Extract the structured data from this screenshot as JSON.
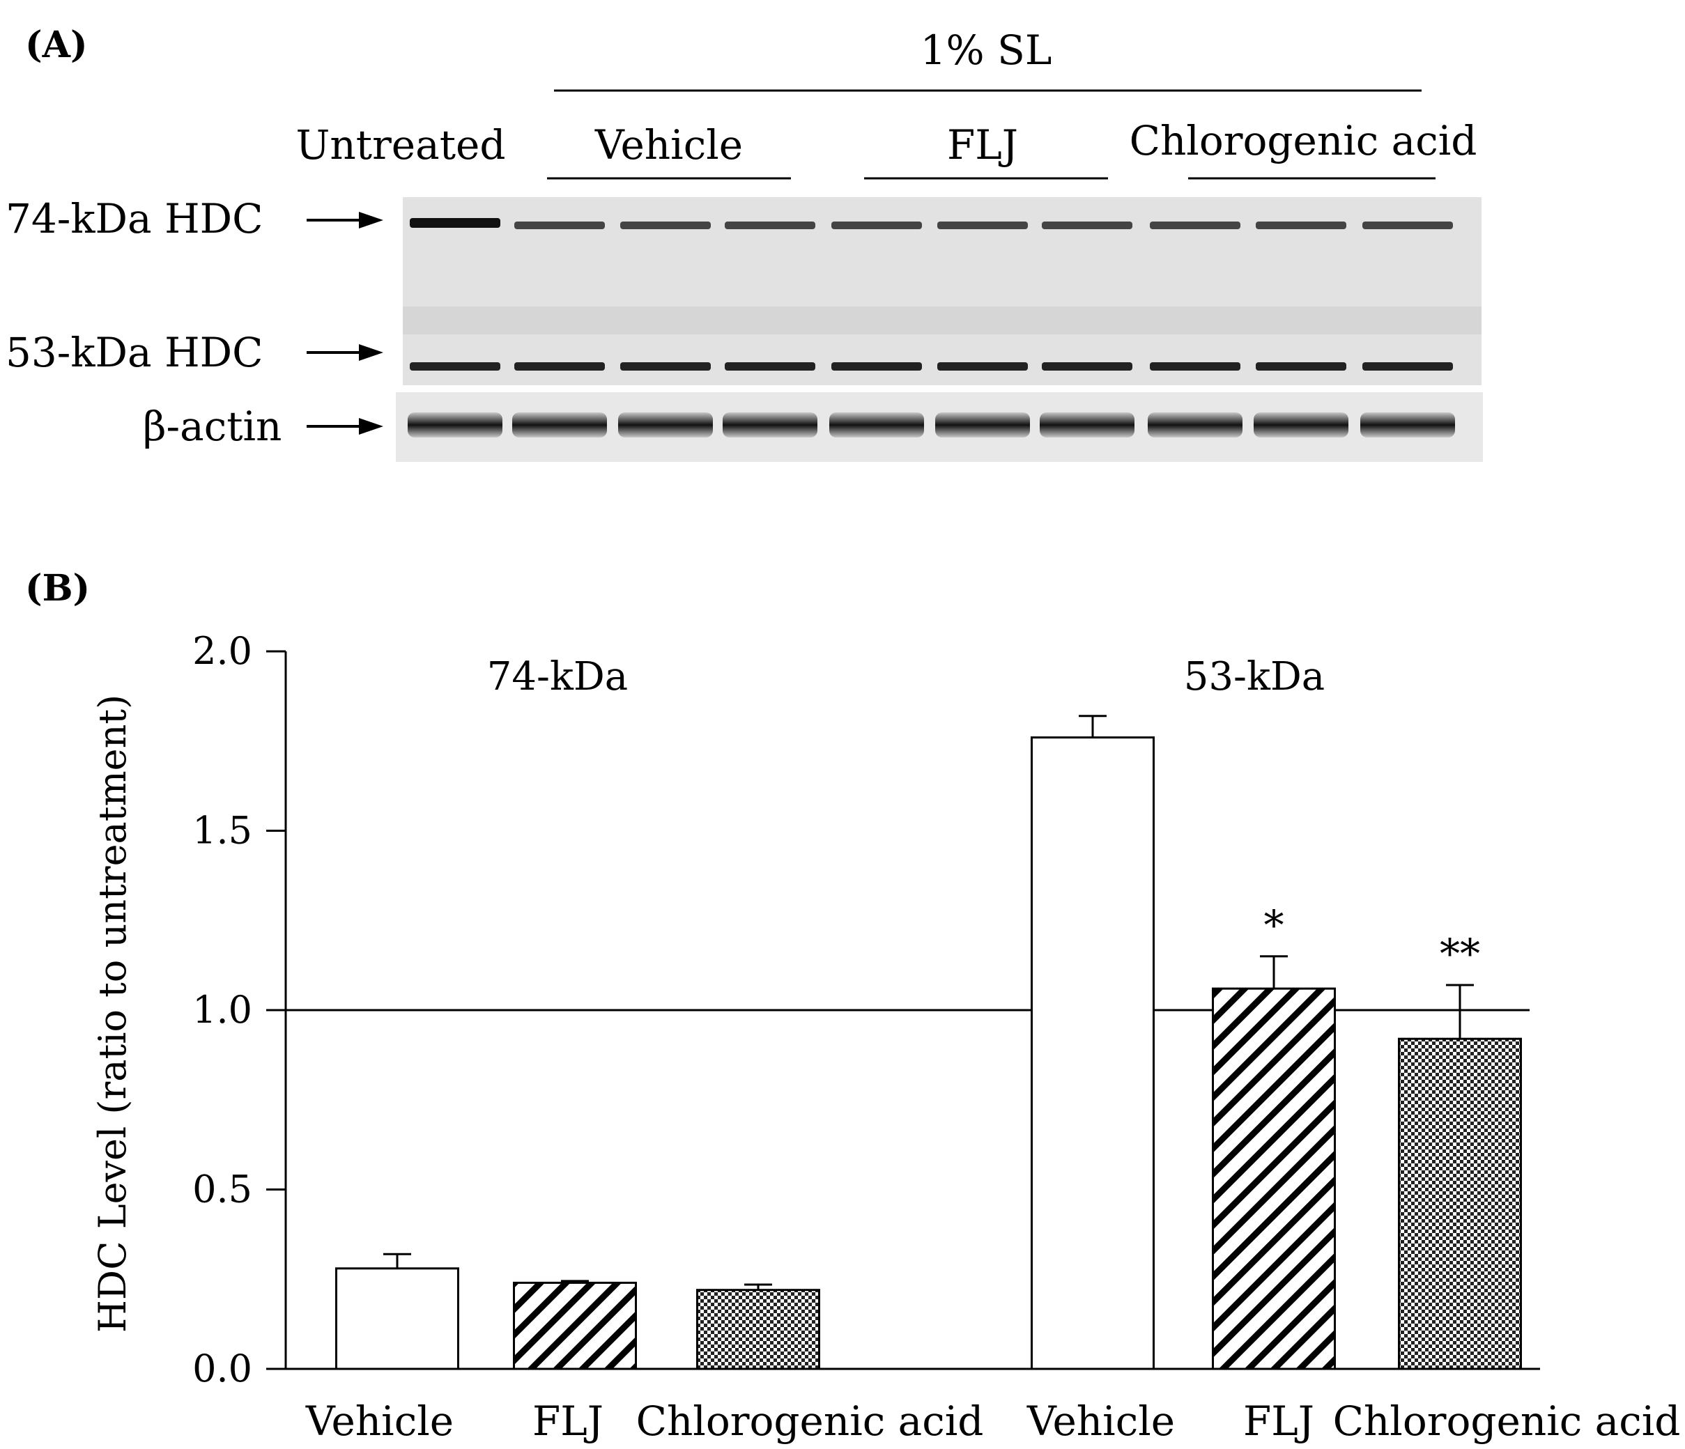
{
  "panel_a": {
    "label": "(A)",
    "treatment_header": "1% SL",
    "groups": [
      "Untreated",
      "Vehicle",
      "FLJ",
      "Chlorogenic acid"
    ],
    "bands": [
      "74-kDa HDC",
      "53-kDa HDC",
      "β-actin"
    ]
  },
  "panel_b": {
    "label": "(B)"
  },
  "chart_data": {
    "type": "bar",
    "ylabel": "HDC Level (ratio to untreatment)",
    "ylim": [
      0,
      2.0
    ],
    "yticks": [
      "0.0",
      "0.5",
      "1.0",
      "1.5",
      "2.0"
    ],
    "reference_line": 1.0,
    "groups": [
      {
        "name": "74-kDa",
        "bars": [
          {
            "category": "Vehicle",
            "value": 0.28,
            "error": 0.04,
            "pattern": "none",
            "annotation": ""
          },
          {
            "category": "FLJ",
            "value": 0.24,
            "error": 0.005,
            "pattern": "hatch",
            "annotation": ""
          },
          {
            "category": "Chlorogenic acid",
            "value": 0.22,
            "error": 0.015,
            "pattern": "checker",
            "annotation": ""
          }
        ]
      },
      {
        "name": "53-kDa",
        "bars": [
          {
            "category": "Vehicle",
            "value": 1.76,
            "error": 0.06,
            "pattern": "none",
            "annotation": ""
          },
          {
            "category": "FLJ",
            "value": 1.06,
            "error": 0.09,
            "pattern": "hatch",
            "annotation": "*"
          },
          {
            "category": "Chlorogenic acid",
            "value": 0.92,
            "error": 0.15,
            "pattern": "checker",
            "annotation": "**"
          }
        ]
      }
    ]
  }
}
